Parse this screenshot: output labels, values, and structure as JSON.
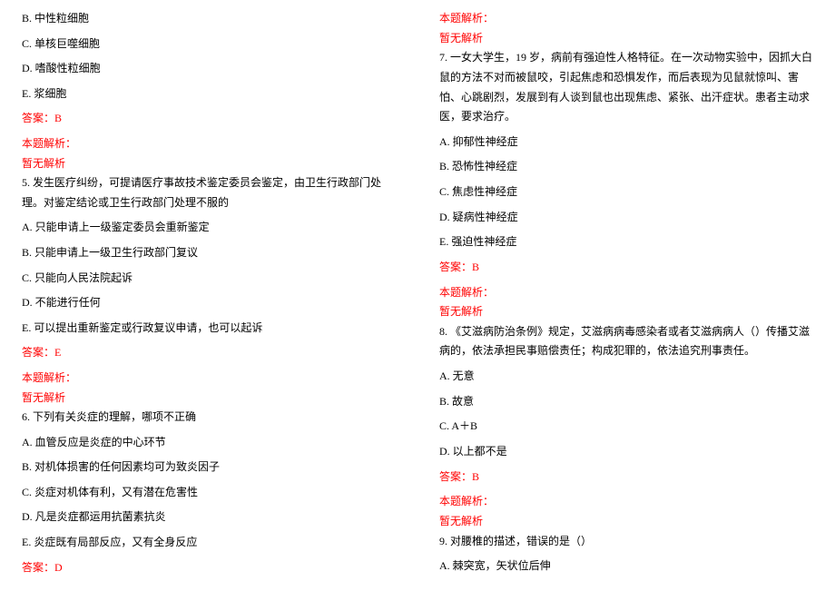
{
  "colors": {
    "text": "#000000",
    "accent": "#ff0000",
    "background": "#ffffff"
  },
  "typography": {
    "font_family": "SimSun",
    "font_size_pt": 9,
    "line_height": 1.8
  },
  "left": {
    "q4_tail": {
      "optB": "B. 中性粒细胞",
      "optC": "C. 单核巨噬细胞",
      "optD": "D. 嗜酸性粒细胞",
      "optE": "E. 浆细胞",
      "answer": "答案：B",
      "parse_title": "本题解析：",
      "parse_body": "暂无解析"
    },
    "q5": {
      "stem": "5. 发生医疗纠纷，可提请医疗事故技术鉴定委员会鉴定，由卫生行政部门处理。对鉴定结论或卫生行政部门处理不服的",
      "optA": "A. 只能申请上一级鉴定委员会重新鉴定",
      "optB": "B. 只能申请上一级卫生行政部门复议",
      "optC": "C. 只能向人民法院起诉",
      "optD": "D. 不能进行任何",
      "optE": "E. 可以提出重新鉴定或行政复议申请，也可以起诉",
      "answer": "答案：E",
      "parse_title": "本题解析：",
      "parse_body": "暂无解析"
    },
    "q6": {
      "stem": "6. 下列有关炎症的理解，哪项不正确",
      "optA": "A. 血管反应是炎症的中心环节",
      "optB": "B. 对机体损害的任何因素均可为致炎因子",
      "optC": "C. 炎症对机体有利，又有潜在危害性",
      "optD": "D. 凡是炎症都运用抗菌素抗炎",
      "optE": "E. 炎症既有局部反应，又有全身反应",
      "answer": "答案：D"
    }
  },
  "right": {
    "q6_tail": {
      "parse_title": "本题解析：",
      "parse_body": "暂无解析"
    },
    "q7": {
      "stem": "7. 一女大学生，19 岁，病前有强迫性人格特征。在一次动物实验中，因抓大白鼠的方法不对而被鼠咬，引起焦虑和恐惧发作，而后表现为见鼠就惊叫、害怕、心跳剧烈，发展到有人谈到鼠也出现焦虑、紧张、出汗症状。患者主动求医，要求治疗。",
      "optA": "A. 抑郁性神经症",
      "optB": "B. 恐怖性神经症",
      "optC": "C. 焦虑性神经症",
      "optD": "D. 疑病性神经症",
      "optE": "E. 强迫性神经症",
      "answer": "答案：B",
      "parse_title": "本题解析：",
      "parse_body": "暂无解析"
    },
    "q8": {
      "stem": "8. 《艾滋病防治条例》规定，艾滋病病毒感染者或者艾滋病病人（）传播艾滋病的，依法承担民事赔偿责任；构成犯罪的，依法追究刑事责任。",
      "optA": "A. 无意",
      "optB": "B. 故意",
      "optC": "C. A＋B",
      "optD": "D. 以上都不是",
      "answer": "答案：B",
      "parse_title": "本题解析：",
      "parse_body": "暂无解析"
    },
    "q9": {
      "stem": "9. 对腰椎的描述，错误的是（）",
      "optA": "A. 棘突宽，矢状位后伸"
    }
  }
}
